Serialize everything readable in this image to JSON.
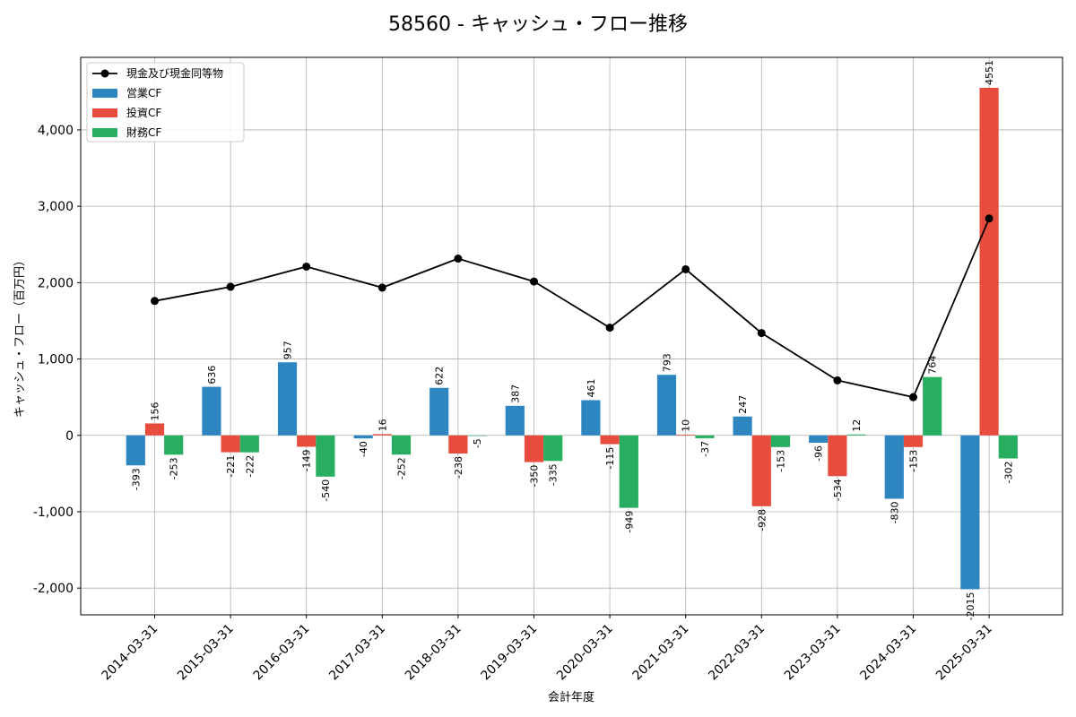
{
  "chart_data": {
    "type": "bar",
    "title": "58560 - キャッシュ・フロー推移",
    "xlabel": "会計年度",
    "ylabel": "キャッシュ・フロー（百万円）",
    "ylim": [
      -2350,
      4950
    ],
    "yticks": [
      -2000,
      -1000,
      0,
      1000,
      2000,
      3000,
      4000
    ],
    "ytick_labels": [
      "-2,000",
      "-1,000",
      "0",
      "1,000",
      "2,000",
      "3,000",
      "4,000"
    ],
    "grid": true,
    "legend_position": "top-left",
    "categories": [
      "2014-03-31",
      "2015-03-31",
      "2016-03-31",
      "2017-03-31",
      "2018-03-31",
      "2019-03-31",
      "2020-03-31",
      "2021-03-31",
      "2022-03-31",
      "2023-03-31",
      "2024-03-31",
      "2025-03-31"
    ],
    "series": [
      {
        "name": "営業CF",
        "kind": "bar",
        "color": "#2e86c1",
        "label_color": "#555555",
        "values": [
          -393,
          636,
          957,
          -40,
          622,
          387,
          461,
          793,
          247,
          -96,
          -830,
          -2015
        ]
      },
      {
        "name": "投資CF",
        "kind": "bar",
        "color": "#e74c3c",
        "label_color": "#000000",
        "values": [
          156,
          -221,
          -149,
          16,
          -238,
          -350,
          -115,
          10,
          -928,
          -534,
          -153,
          4551
        ]
      },
      {
        "name": "財務CF",
        "kind": "bar",
        "color": "#27ae60",
        "label_color": "#000000",
        "values": [
          -253,
          -222,
          -540,
          -252,
          -5,
          -335,
          -949,
          -37,
          -153,
          12,
          764,
          -302
        ]
      },
      {
        "name": "現金及び現金同等物",
        "kind": "line",
        "color": "#000000",
        "values": [
          1760,
          1945,
          2210,
          1935,
          2315,
          2015,
          1410,
          2175,
          1340,
          720,
          500,
          2840
        ]
      }
    ]
  }
}
